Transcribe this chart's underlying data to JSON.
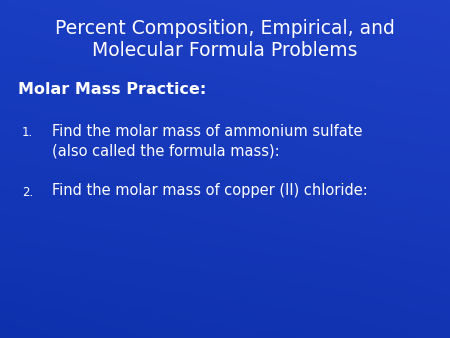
{
  "title_line1": "Percent Composition, Empirical, and",
  "title_line2": "Molecular Formula Problems",
  "subtitle": "Molar Mass Practice:",
  "item1_line1": "Find the molar mass of ammonium sulfate",
  "item1_line2": "(also called the formula mass):",
  "item2_line1": "Find the molar mass of copper (II) chloride:",
  "bg_color": "#1a3ec2",
  "bg_color_dark": "#0a2aaa",
  "text_color": "#ffffff",
  "title_fontsize": 13.5,
  "subtitle_fontsize": 11.5,
  "body_fontsize": 10.5,
  "number_fontsize": 8.5
}
